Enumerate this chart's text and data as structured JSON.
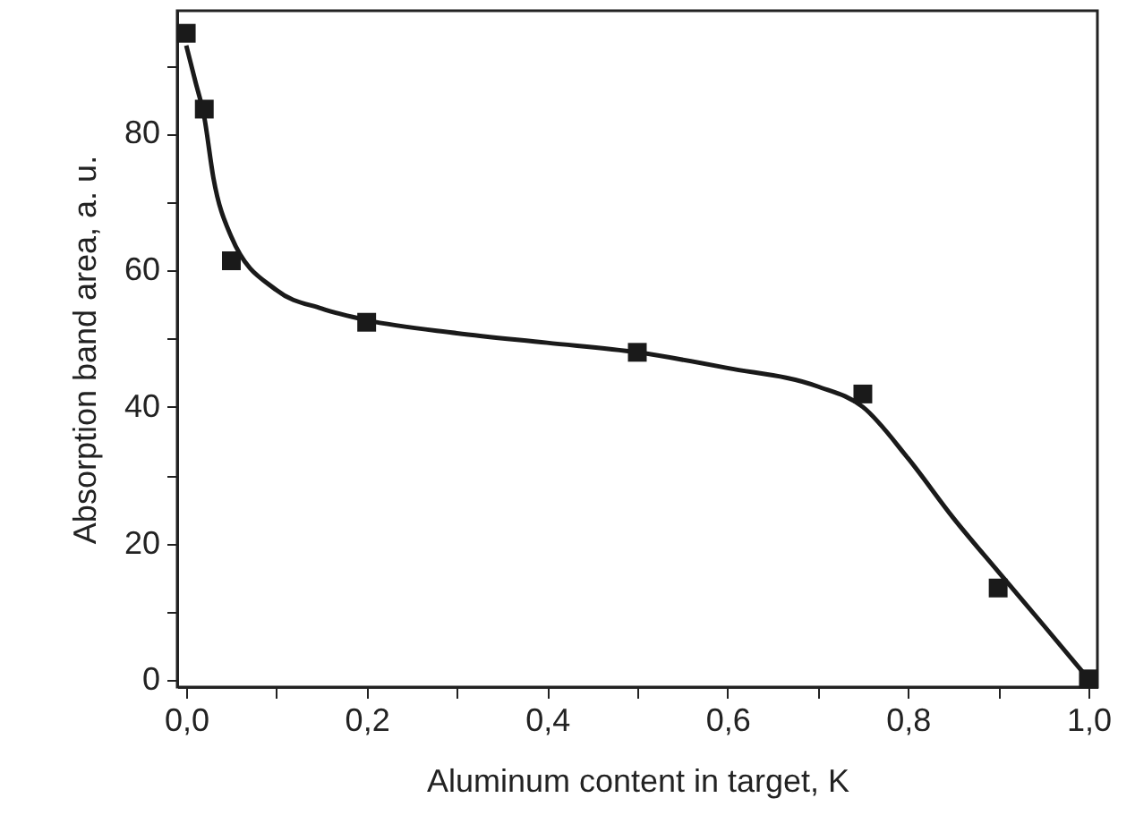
{
  "chart_data": {
    "type": "scatter",
    "xlabel": "Aluminum content in target, K",
    "ylabel": "Absorption band area, a. u.",
    "xlim": [
      -0.01,
      1.01
    ],
    "ylim": [
      -1,
      98
    ],
    "xticks": [
      {
        "value": 0,
        "label": "0,0"
      },
      {
        "value": 0.1,
        "label": null
      },
      {
        "value": 0.2,
        "label": "0,2"
      },
      {
        "value": 0.3,
        "label": null
      },
      {
        "value": 0.4,
        "label": "0,4"
      },
      {
        "value": 0.5,
        "label": null
      },
      {
        "value": 0.6,
        "label": "0,6"
      },
      {
        "value": 0.7,
        "label": null
      },
      {
        "value": 0.8,
        "label": "0,8"
      },
      {
        "value": 0.9,
        "label": null
      },
      {
        "value": 1,
        "label": "1,0"
      }
    ],
    "yticks": [
      0,
      {
        "value": 10,
        "label": null
      },
      20,
      {
        "value": 30,
        "label": null
      },
      40,
      {
        "value": 50,
        "label": null
      },
      60,
      {
        "value": 70,
        "label": null
      },
      80,
      {
        "value": 90,
        "label": null
      }
    ],
    "grid": false,
    "series": [
      {
        "type": "line",
        "color": "#1a1a1a",
        "line_style": "solid",
        "x": [
          0,
          0.01,
          0.02,
          0.03,
          0.05,
          0.1,
          0.15,
          0.2,
          0.3,
          0.4,
          0.5,
          0.6,
          0.7,
          0.75,
          0.8,
          0.85,
          0.9,
          0.95,
          1.0
        ],
        "values": [
          92.9,
          87.7,
          82.4,
          73.6,
          64.9,
          57.1,
          54.4,
          52.7,
          50.8,
          49.4,
          48.0,
          45.7,
          43.0,
          40.0,
          32.5,
          23.8,
          15.9,
          8.1,
          0.2
        ]
      },
      {
        "color": "#1a1a1a",
        "marker": "square",
        "x": [
          0,
          0.02,
          0.05,
          0.2,
          0.5,
          0.75,
          0.9,
          1.0
        ],
        "values": [
          94.7,
          83.6,
          61.4,
          52.4,
          48.0,
          41.9,
          13.5,
          0.2
        ]
      }
    ]
  }
}
